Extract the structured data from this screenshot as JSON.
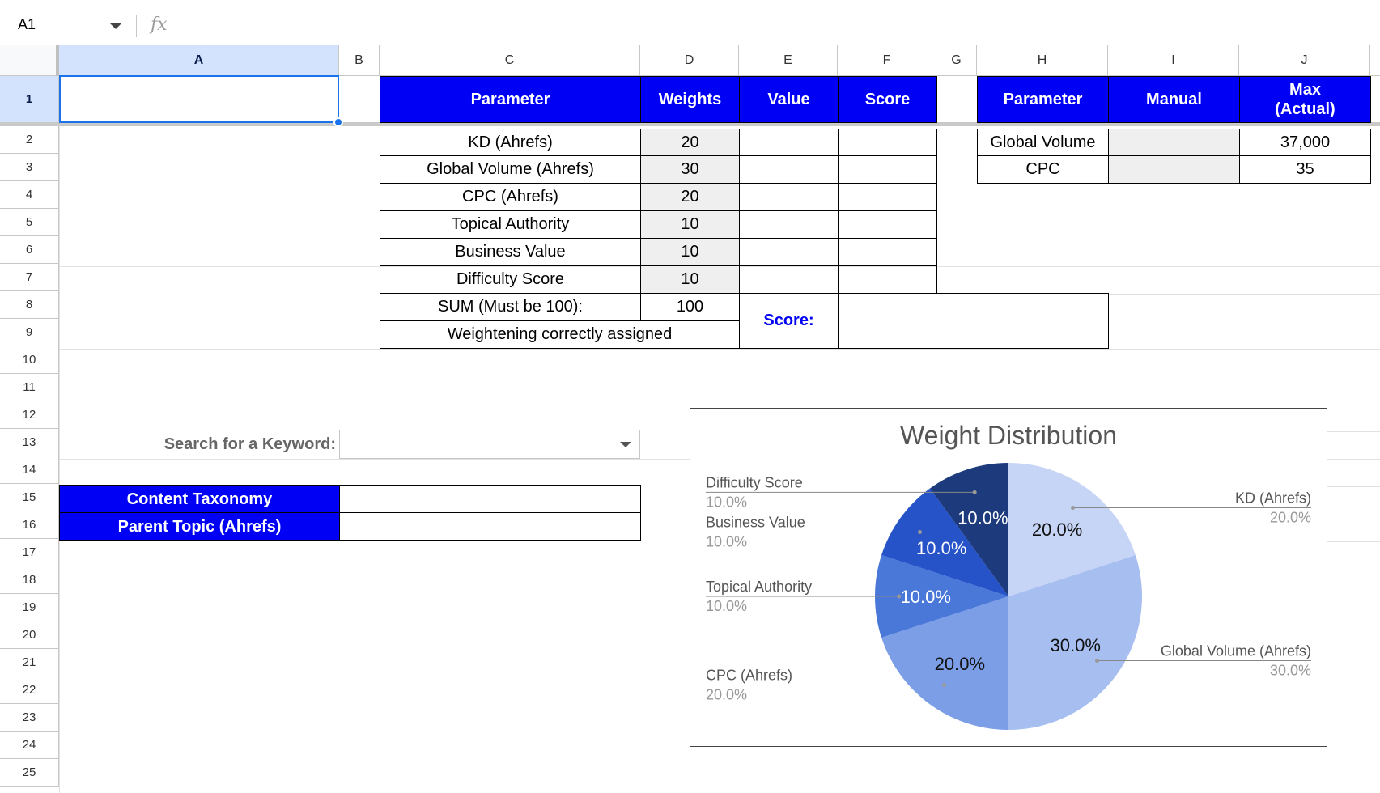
{
  "formula_bar": {
    "cell_ref": "A1",
    "fx": "fx"
  },
  "columns": [
    "A",
    "B",
    "C",
    "D",
    "E",
    "F",
    "G",
    "H",
    "I",
    "J"
  ],
  "rows": [
    "1",
    "2",
    "3",
    "4",
    "5",
    "6",
    "7",
    "8",
    "9",
    "10",
    "11",
    "12",
    "13",
    "14",
    "15",
    "16",
    "17",
    "18",
    "19",
    "20",
    "21",
    "22",
    "23",
    "24",
    "25"
  ],
  "table1": {
    "headers": {
      "parameter": "Parameter",
      "weights": "Weights",
      "value": "Value",
      "score": "Score"
    },
    "rows": [
      {
        "parameter": "KD (Ahrefs)",
        "weight": "20"
      },
      {
        "parameter": "Global Volume (Ahrefs)",
        "weight": "30"
      },
      {
        "parameter": "CPC (Ahrefs)",
        "weight": "20"
      },
      {
        "parameter": "Topical Authority",
        "weight": "10"
      },
      {
        "parameter": "Business Value",
        "weight": "10"
      },
      {
        "parameter": "Difficulty Score",
        "weight": "10"
      }
    ],
    "sum_label": "SUM (Must be 100):",
    "sum_value": "100",
    "status": "Weightening correctly assigned",
    "score_label": "Score:"
  },
  "table2": {
    "headers": {
      "parameter": "Parameter",
      "manual": "Manual",
      "max_line1": "Max",
      "max_line2": "(Actual)"
    },
    "rows": [
      {
        "parameter": "Global Volume",
        "max": "37,000"
      },
      {
        "parameter": "CPC",
        "max": "35"
      }
    ]
  },
  "search": {
    "label": "Search for a Keyword:"
  },
  "taxonomy": {
    "content_taxonomy": "Content Taxonomy",
    "parent_topic": "Parent Topic (Ahrefs)"
  },
  "colors": {
    "header_blue": "#0000f5",
    "selection_blue": "#1a73e8"
  },
  "chart_data": {
    "type": "pie",
    "title": "Weight Distribution",
    "slices": [
      {
        "label": "KD (Ahrefs)",
        "value": 20,
        "pct": "20.0%",
        "color": "#c6d5f5"
      },
      {
        "label": "Global Volume (Ahrefs)",
        "value": 30,
        "pct": "30.0%",
        "color": "#a6bff0"
      },
      {
        "label": "CPC (Ahrefs)",
        "value": 20,
        "pct": "20.0%",
        "color": "#7b9ee6"
      },
      {
        "label": "Topical Authority",
        "value": 10,
        "pct": "10.0%",
        "color": "#4a78d8"
      },
      {
        "label": "Business Value",
        "value": 10,
        "pct": "10.0%",
        "color": "#2753c8"
      },
      {
        "label": "Difficulty Score",
        "value": 10,
        "pct": "10.0%",
        "color": "#1c3a7c"
      }
    ]
  }
}
